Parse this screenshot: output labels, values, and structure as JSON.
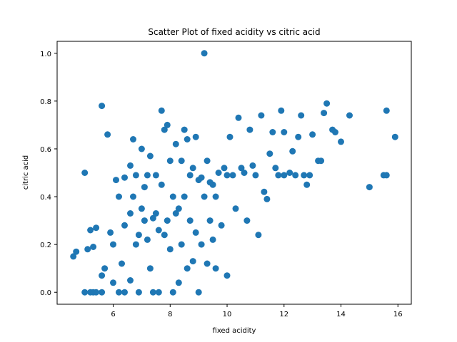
{
  "chart_data": {
    "type": "scatter",
    "title": "Scatter Plot of fixed acidity vs citric acid",
    "xlabel": "fixed acidity",
    "ylabel": "citric acid",
    "xlim": [
      4.03,
      16.47
    ],
    "ylim": [
      -0.05,
      1.05
    ],
    "xticks": [
      6,
      8,
      10,
      12,
      14,
      16
    ],
    "yticks": [
      0.0,
      0.2,
      0.4,
      0.6,
      0.8,
      1.0
    ],
    "grid": false,
    "marker_color": "#1f77b4",
    "series": [
      {
        "x": [
          4.6,
          4.7,
          5.0,
          5.0,
          5.1,
          5.2,
          5.2,
          5.3,
          5.3,
          5.4,
          5.4,
          5.6,
          5.6,
          5.6,
          5.7,
          5.8,
          5.9,
          6.0,
          6.0,
          6.1,
          6.2,
          6.2,
          6.3,
          6.4,
          6.4,
          6.4,
          6.6,
          6.6,
          6.6,
          6.7,
          6.7,
          6.8,
          6.8,
          6.9,
          6.9,
          7.0,
          7.0,
          7.1,
          7.1,
          7.2,
          7.2,
          7.3,
          7.3,
          7.4,
          7.4,
          7.5,
          7.5,
          7.6,
          7.6,
          7.7,
          7.7,
          7.8,
          7.8,
          7.9,
          7.9,
          8.0,
          8.0,
          8.1,
          8.1,
          8.2,
          8.2,
          8.3,
          8.3,
          8.4,
          8.4,
          8.5,
          8.5,
          8.6,
          8.6,
          8.7,
          8.7,
          8.8,
          8.8,
          8.9,
          8.9,
          9.0,
          9.0,
          9.1,
          9.1,
          9.2,
          9.2,
          9.3,
          9.3,
          9.4,
          9.4,
          9.5,
          9.5,
          9.6,
          9.6,
          9.7,
          9.8,
          9.9,
          10.0,
          10.0,
          10.1,
          10.2,
          10.3,
          10.4,
          10.5,
          10.6,
          10.7,
          10.8,
          10.9,
          11.0,
          11.1,
          11.2,
          11.3,
          11.4,
          11.5,
          11.6,
          11.7,
          11.8,
          11.9,
          12.0,
          12.0,
          12.2,
          12.3,
          12.4,
          12.5,
          12.6,
          12.7,
          12.8,
          12.9,
          13.0,
          13.2,
          13.3,
          13.4,
          13.5,
          13.7,
          13.8,
          14.0,
          14.3,
          15.0,
          15.5,
          15.6,
          15.6,
          15.9
        ],
        "y": [
          0.15,
          0.17,
          0.0,
          0.5,
          0.18,
          0.26,
          0.0,
          0.19,
          0.0,
          0.27,
          0.0,
          0.78,
          0.07,
          0.0,
          0.1,
          0.66,
          0.25,
          0.2,
          0.04,
          0.47,
          0.4,
          0.0,
          0.12,
          0.48,
          0.28,
          0.0,
          0.53,
          0.33,
          0.05,
          0.64,
          0.4,
          0.49,
          0.2,
          0.24,
          0.0,
          0.6,
          0.35,
          0.44,
          0.3,
          0.49,
          0.22,
          0.57,
          0.1,
          0.31,
          0.0,
          0.49,
          0.33,
          0.26,
          0.0,
          0.76,
          0.45,
          0.68,
          0.24,
          0.7,
          0.3,
          0.55,
          0.18,
          0.4,
          0.0,
          0.62,
          0.33,
          0.35,
          0.04,
          0.55,
          0.2,
          0.68,
          0.4,
          0.64,
          0.1,
          0.49,
          0.3,
          0.52,
          0.13,
          0.65,
          0.25,
          0.47,
          0.0,
          0.48,
          0.2,
          1.0,
          0.4,
          0.55,
          0.12,
          0.46,
          0.3,
          0.45,
          0.22,
          0.4,
          0.1,
          0.5,
          0.28,
          0.52,
          0.49,
          0.07,
          0.65,
          0.49,
          0.35,
          0.73,
          0.52,
          0.5,
          0.3,
          0.68,
          0.53,
          0.49,
          0.24,
          0.74,
          0.42,
          0.39,
          0.58,
          0.67,
          0.52,
          0.49,
          0.76,
          0.49,
          0.67,
          0.5,
          0.59,
          0.49,
          0.65,
          0.74,
          0.49,
          0.45,
          0.49,
          0.66,
          0.55,
          0.55,
          0.75,
          0.79,
          0.68,
          0.67,
          0.63,
          0.74,
          0.44,
          0.49,
          0.76,
          0.49,
          0.65
        ]
      }
    ]
  }
}
